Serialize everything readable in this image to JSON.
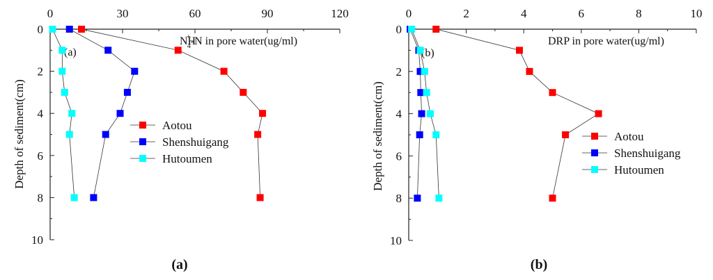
{
  "chart_data": [
    {
      "type": "line",
      "panel_label": "(a)",
      "caption": "a",
      "title_main": "NH",
      "title_sup": "+",
      "title_sub": "4",
      "title_rest": "-N in pore water(ug/ml)",
      "ylabel": "Depth of sediment(cm)",
      "xlim": [
        0,
        120
      ],
      "ylim": [
        0,
        10
      ],
      "xticks": [
        0,
        30,
        60,
        90,
        120
      ],
      "yticks": [
        0,
        2,
        4,
        6,
        8,
        10
      ],
      "y": [
        0,
        1,
        2,
        3,
        4,
        5,
        8
      ],
      "series": [
        {
          "name": "Aotou",
          "color": "#ff0000",
          "x": [
            13,
            53,
            72,
            80,
            88,
            86,
            87
          ],
          "y": [
            0,
            1,
            2,
            3,
            4,
            5,
            8
          ]
        },
        {
          "name": "Shenshuigang",
          "color": "#0000ff",
          "x": [
            8,
            24,
            35,
            32,
            29,
            23,
            18
          ],
          "y": [
            0,
            1,
            2,
            3,
            4,
            5,
            8
          ]
        },
        {
          "name": "Hutoumen",
          "color": "#00ffff",
          "x": [
            1,
            5,
            5,
            6,
            9,
            8,
            10
          ],
          "y": [
            0,
            1,
            2,
            3,
            4,
            5,
            8
          ]
        }
      ]
    },
    {
      "type": "line",
      "panel_label": "(b)",
      "caption": "b",
      "title_main": "DRP in pore water(ug/ml)",
      "ylabel": "Depth of sediment(cm)",
      "xlim": [
        0,
        10
      ],
      "ylim": [
        0,
        10
      ],
      "xticks": [
        0,
        2,
        4,
        6,
        8,
        10
      ],
      "yticks": [
        0,
        2,
        4,
        6,
        8,
        10
      ],
      "series": [
        {
          "name": "Aotou",
          "color": "#ff0000",
          "x": [
            0.95,
            3.85,
            4.2,
            5.0,
            6.6,
            5.45,
            5.0
          ],
          "y": [
            0,
            1,
            2,
            3,
            4,
            5,
            8
          ]
        },
        {
          "name": "Shenshuigang",
          "color": "#0000ff",
          "x": [
            0.05,
            0.35,
            0.4,
            0.42,
            0.45,
            0.38,
            0.3
          ],
          "y": [
            0,
            1,
            2,
            3,
            4,
            5,
            8
          ]
        },
        {
          "name": "Hutoumen",
          "color": "#00ffff",
          "x": [
            0.1,
            0.4,
            0.55,
            0.62,
            0.75,
            0.95,
            1.05
          ],
          "y": [
            0,
            1,
            2,
            3,
            4,
            5,
            8
          ]
        }
      ]
    }
  ]
}
